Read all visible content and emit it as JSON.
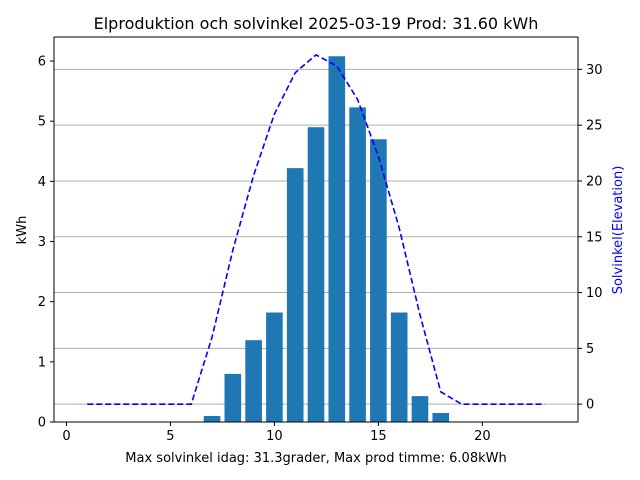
{
  "chart_data": {
    "type": "bar",
    "title": "Elproduktion och solvinkel 2025-03-19 Prod: 31.60 kWh",
    "xlabel": "Max solvinkel idag: 31.3grader, Max prod timme: 6.08kWh",
    "ylabel": "kWh",
    "y2label": "Solvinkel(Elevation)",
    "xlim": [
      -0.6,
      24.6
    ],
    "ylim": [
      0,
      6.4
    ],
    "y2lim": [
      -1.6,
      32.9
    ],
    "xticks": [
      0,
      5,
      10,
      15,
      20
    ],
    "yticks": [
      0,
      1,
      2,
      3,
      4,
      5,
      6
    ],
    "y2ticks": [
      0,
      5,
      10,
      15,
      20,
      25,
      30
    ],
    "grid": "right axis horizontal",
    "colors": {
      "bars": "#1f77b4",
      "elevation_line": "#0000ff",
      "grid": "#b0b0b0"
    },
    "series": [
      {
        "kind": "bar",
        "axis": "left",
        "x": [
          7,
          8,
          9,
          10,
          11,
          12,
          13,
          14,
          15,
          16,
          17,
          18
        ],
        "values": [
          0.1,
          0.8,
          1.36,
          1.82,
          4.22,
          4.9,
          6.08,
          5.23,
          4.7,
          1.82,
          0.43,
          0.15
        ]
      },
      {
        "kind": "line",
        "style": "dashed",
        "axis": "right",
        "x": [
          1,
          2,
          3,
          4,
          5,
          6,
          7,
          8,
          9,
          10,
          11,
          12,
          13,
          14,
          15,
          16,
          17,
          18,
          19,
          20,
          21,
          22,
          23
        ],
        "values": [
          0,
          0,
          0,
          0,
          0,
          0,
          6.0,
          13.8,
          20.5,
          26.0,
          29.7,
          31.3,
          30.3,
          27.3,
          22.2,
          15.8,
          8.0,
          1.1,
          0,
          0,
          0,
          0,
          0
        ]
      }
    ]
  }
}
